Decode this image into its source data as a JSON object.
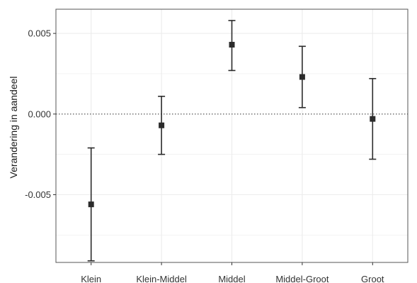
{
  "chart_data": {
    "type": "errorbar",
    "title": "",
    "xlabel": "",
    "ylabel": "Verandering in aandeel",
    "categories": [
      "Klein",
      "Klein-Middel",
      "Middel",
      "Middel-Groot",
      "Groot"
    ],
    "series": [
      {
        "values": [
          -0.0056,
          -0.0007,
          0.0043,
          0.0023,
          -0.0003
        ],
        "lower": [
          -0.0091,
          -0.0025,
          0.0027,
          0.0004,
          -0.0028
        ],
        "upper": [
          -0.0021,
          0.0011,
          0.0058,
          0.0042,
          0.0022
        ]
      }
    ],
    "ylim": [
      -0.0092,
      0.0065
    ],
    "yticks": [
      -0.005,
      0.0,
      0.005
    ],
    "ytick_labels": [
      "-0.005",
      "0.000",
      "0.005"
    ],
    "reference_line": {
      "y": 0.0,
      "style": "dotted"
    },
    "grid": true,
    "legend": "none",
    "colors": {
      "marker": "#2b2b2b",
      "grid": "#ececec",
      "panel_border": "#555555",
      "reference": "#444444"
    }
  }
}
